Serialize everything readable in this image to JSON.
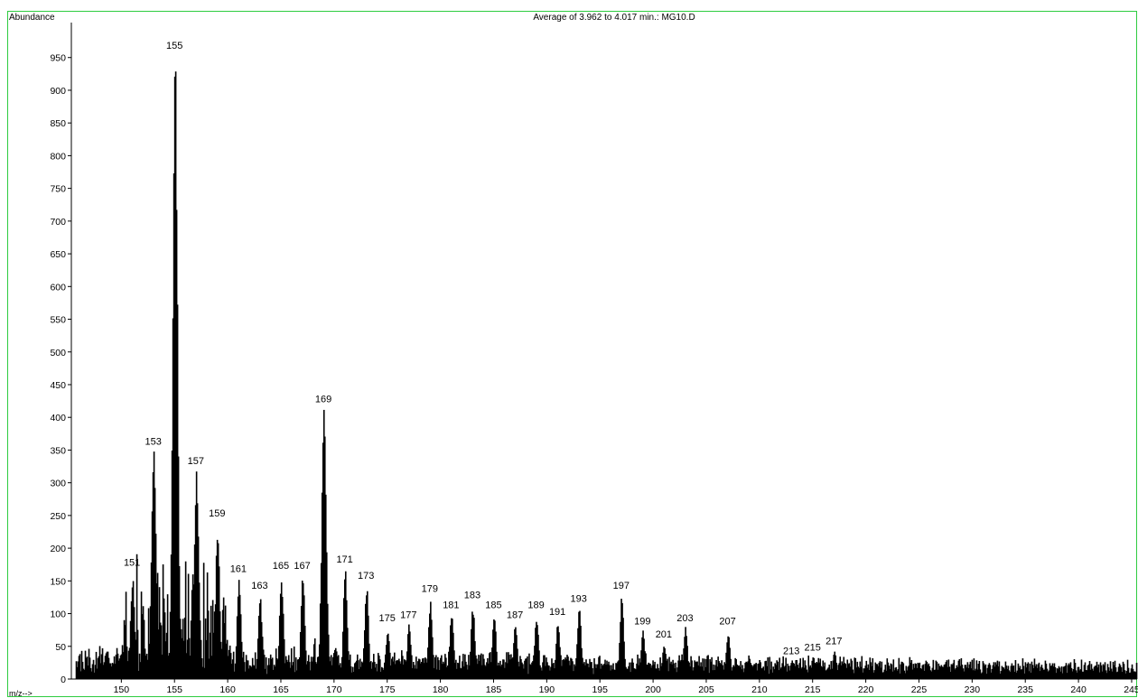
{
  "chart_data": {
    "type": "bar",
    "title": "Average of 3.962 to 4.017 min.: MG10.D",
    "ylabel": "Abundance",
    "xlabel": "m/z-->",
    "xlim": [
      150,
      248
    ],
    "ylim": [
      0,
      1000
    ],
    "xticks": [
      150,
      155,
      160,
      165,
      170,
      175,
      180,
      185,
      190,
      195,
      200,
      205,
      210,
      215,
      220,
      225,
      230,
      235,
      240,
      245
    ],
    "yticks": [
      0,
      50,
      100,
      150,
      200,
      250,
      300,
      350,
      400,
      450,
      500,
      550,
      600,
      650,
      700,
      750,
      800,
      850,
      900,
      950
    ],
    "labeled_peaks": [
      {
        "label": "151",
        "x": 151,
        "y": 165
      },
      {
        "label": "153",
        "x": 153,
        "y": 350
      },
      {
        "label": "155",
        "x": 155,
        "y": 955
      },
      {
        "label": "157",
        "x": 157,
        "y": 320
      },
      {
        "label": "159",
        "x": 159,
        "y": 240
      },
      {
        "label": "161",
        "x": 161,
        "y": 155
      },
      {
        "label": "163",
        "x": 163,
        "y": 130
      },
      {
        "label": "165",
        "x": 165,
        "y": 160
      },
      {
        "label": "167",
        "x": 167,
        "y": 160
      },
      {
        "label": "169",
        "x": 169,
        "y": 415
      },
      {
        "label": "171",
        "x": 171,
        "y": 170
      },
      {
        "label": "173",
        "x": 173,
        "y": 145
      },
      {
        "label": "175",
        "x": 175,
        "y": 80
      },
      {
        "label": "177",
        "x": 177,
        "y": 85
      },
      {
        "label": "179",
        "x": 179,
        "y": 125
      },
      {
        "label": "181",
        "x": 181,
        "y": 100
      },
      {
        "label": "183",
        "x": 183,
        "y": 115
      },
      {
        "label": "185",
        "x": 185,
        "y": 100
      },
      {
        "label": "187",
        "x": 187,
        "y": 85
      },
      {
        "label": "189",
        "x": 189,
        "y": 100
      },
      {
        "label": "191",
        "x": 191,
        "y": 90
      },
      {
        "label": "193",
        "x": 193,
        "y": 110
      },
      {
        "label": "197",
        "x": 197,
        "y": 130
      },
      {
        "label": "199",
        "x": 199,
        "y": 75
      },
      {
        "label": "201",
        "x": 201,
        "y": 55
      },
      {
        "label": "203",
        "x": 203,
        "y": 80
      },
      {
        "label": "207",
        "x": 207,
        "y": 75
      },
      {
        "label": "213",
        "x": 213,
        "y": 30
      },
      {
        "label": "215",
        "x": 215,
        "y": 35
      },
      {
        "label": "217",
        "x": 217,
        "y": 45
      }
    ],
    "background_level": 15,
    "grid": false,
    "legend": "none"
  },
  "colors": {
    "bars": "#000000",
    "frame": "#2ecc40",
    "text": "#000000"
  }
}
